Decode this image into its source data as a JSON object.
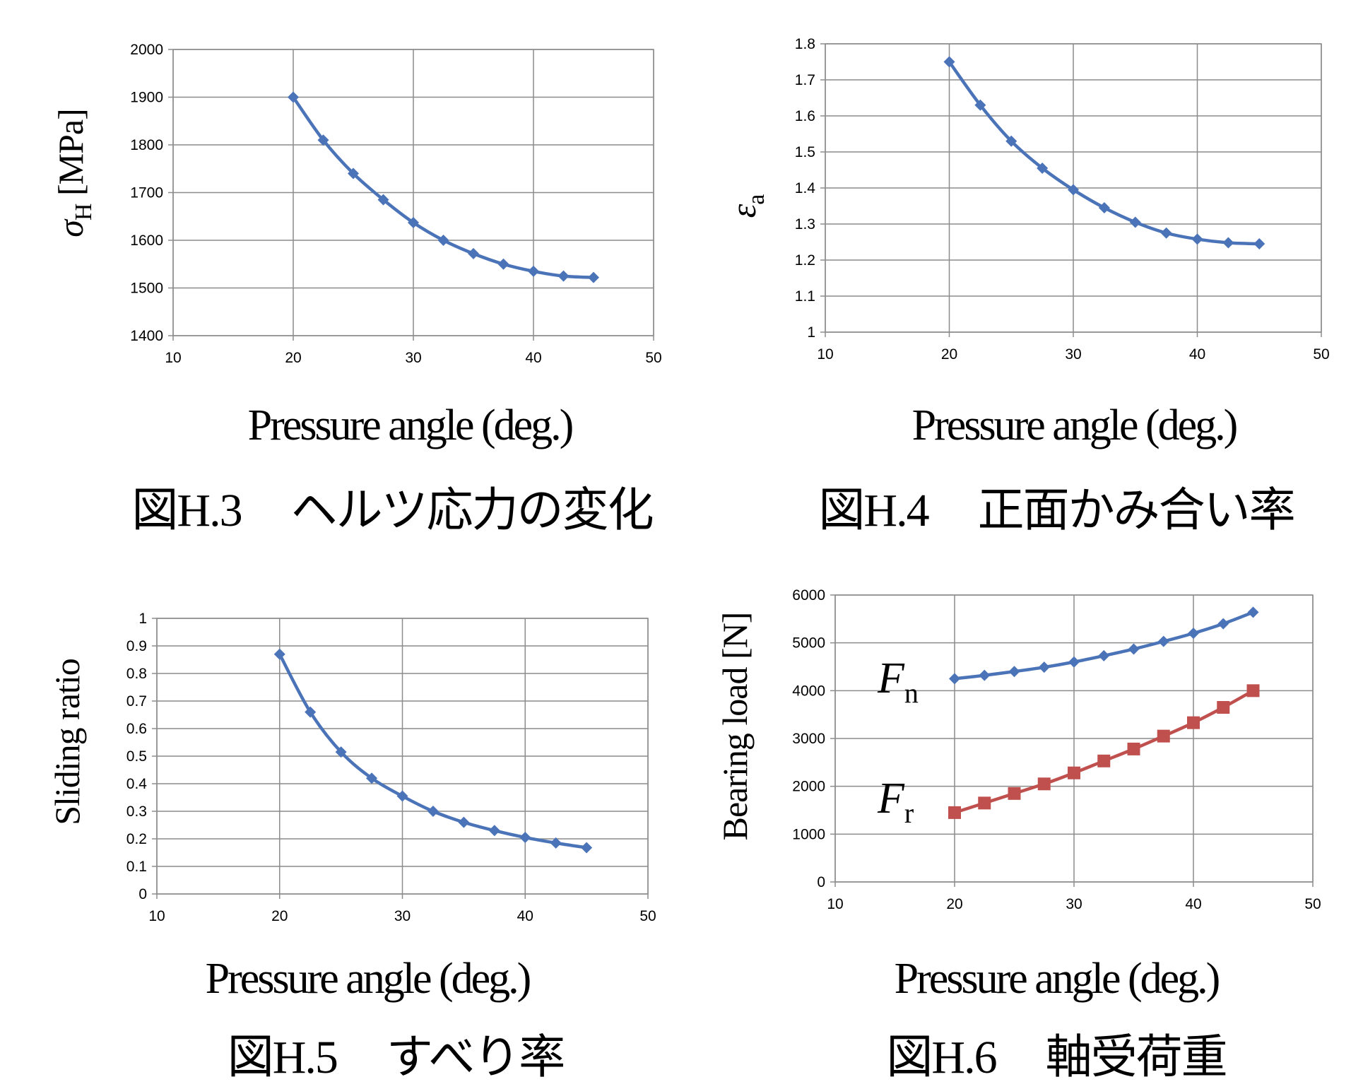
{
  "chart_data": [
    {
      "id": "h3",
      "type": "line",
      "title": "",
      "xlabel": "Pressure angle (deg.)",
      "ylabel": {
        "symbol": "σ",
        "subscript": "H",
        "unit": "[MPa]"
      },
      "caption": {
        "figure": "図H.3",
        "text": "ヘルツ応力の変化"
      },
      "xlim": [
        10,
        50
      ],
      "ylim": [
        1400,
        2000
      ],
      "xticks": [
        "10",
        "20",
        "30",
        "40",
        "50"
      ],
      "yticks": [
        "1400",
        "1500",
        "1600",
        "1700",
        "1800",
        "1900",
        "2000"
      ],
      "grid": true,
      "series": [
        {
          "color": "#4a73b8",
          "marker": "diamond",
          "x": [
            20,
            22.5,
            25,
            27.5,
            30,
            32.5,
            35,
            37.5,
            40,
            42.5,
            45
          ],
          "y": [
            1900,
            1810,
            1740,
            1685,
            1637,
            1600,
            1572,
            1550,
            1535,
            1525,
            1522
          ]
        }
      ]
    },
    {
      "id": "h4",
      "type": "line",
      "title": "",
      "xlabel": "Pressure angle (deg.)",
      "ylabel": {
        "symbol": "ε",
        "subscript": "a",
        "unit": ""
      },
      "caption": {
        "figure": "図H.4",
        "text": "正面かみ合い率"
      },
      "xlim": [
        10,
        50
      ],
      "ylim": [
        1,
        1.8
      ],
      "xticks": [
        "10",
        "20",
        "30",
        "40",
        "50"
      ],
      "yticks": [
        "1",
        "1.1",
        "1.2",
        "1.3",
        "1.4",
        "1.5",
        "1.6",
        "1.7",
        "1.8"
      ],
      "grid": true,
      "series": [
        {
          "color": "#4a73b8",
          "marker": "diamond",
          "x": [
            20,
            22.5,
            25,
            27.5,
            30,
            32.5,
            35,
            37.5,
            40,
            42.5,
            45
          ],
          "y": [
            1.75,
            1.63,
            1.53,
            1.455,
            1.395,
            1.345,
            1.305,
            1.275,
            1.258,
            1.248,
            1.245
          ]
        }
      ]
    },
    {
      "id": "h5",
      "type": "line",
      "title": "",
      "xlabel": "Pressure angle (deg.)",
      "ylabel": {
        "symbol": "",
        "subscript": "",
        "unit": "Sliding ratio"
      },
      "caption": {
        "figure": "図H.5",
        "text": "すべり率"
      },
      "xlim": [
        10,
        50
      ],
      "ylim": [
        0,
        1
      ],
      "xticks": [
        "10",
        "20",
        "30",
        "40",
        "50"
      ],
      "yticks": [
        "0",
        "0.1",
        "0.2",
        "0.3",
        "0.4",
        "0.5",
        "0.6",
        "0.7",
        "0.8",
        "0.9",
        "1"
      ],
      "grid": true,
      "series": [
        {
          "color": "#4a73b8",
          "marker": "diamond",
          "x": [
            20,
            22.5,
            25,
            27.5,
            30,
            32.5,
            35,
            37.5,
            40,
            42.5,
            45
          ],
          "y": [
            0.87,
            0.66,
            0.515,
            0.42,
            0.355,
            0.3,
            0.26,
            0.23,
            0.205,
            0.185,
            0.168
          ]
        }
      ]
    },
    {
      "id": "h6",
      "type": "line",
      "title": "",
      "xlabel": "Pressure angle (deg.)",
      "ylabel": {
        "symbol": "",
        "subscript": "",
        "unit": "Bearing load [N]"
      },
      "caption": {
        "figure": "図H.6",
        "text": "軸受荷重"
      },
      "xlim": [
        10,
        50
      ],
      "ylim": [
        0,
        6000
      ],
      "xticks": [
        "10",
        "20",
        "30",
        "40",
        "50"
      ],
      "yticks": [
        "0",
        "1000",
        "2000",
        "3000",
        "4000",
        "5000",
        "6000"
      ],
      "grid": true,
      "series": [
        {
          "name": "Fn",
          "label_main": "F",
          "label_sub": "n",
          "color": "#4a73b8",
          "marker": "diamond",
          "x": [
            20,
            22.5,
            25,
            27.5,
            30,
            32.5,
            35,
            37.5,
            40,
            42.5,
            45
          ],
          "y": [
            4250,
            4320,
            4400,
            4490,
            4600,
            4730,
            4870,
            5030,
            5200,
            5400,
            5640
          ]
        },
        {
          "name": "Fr",
          "label_main": "F",
          "label_sub": "r",
          "color": "#c0504d",
          "marker": "square",
          "x": [
            20,
            22.5,
            25,
            27.5,
            30,
            32.5,
            35,
            37.5,
            40,
            42.5,
            45
          ],
          "y": [
            1450,
            1650,
            1850,
            2050,
            2280,
            2530,
            2780,
            3050,
            3330,
            3650,
            4000
          ]
        }
      ]
    }
  ]
}
